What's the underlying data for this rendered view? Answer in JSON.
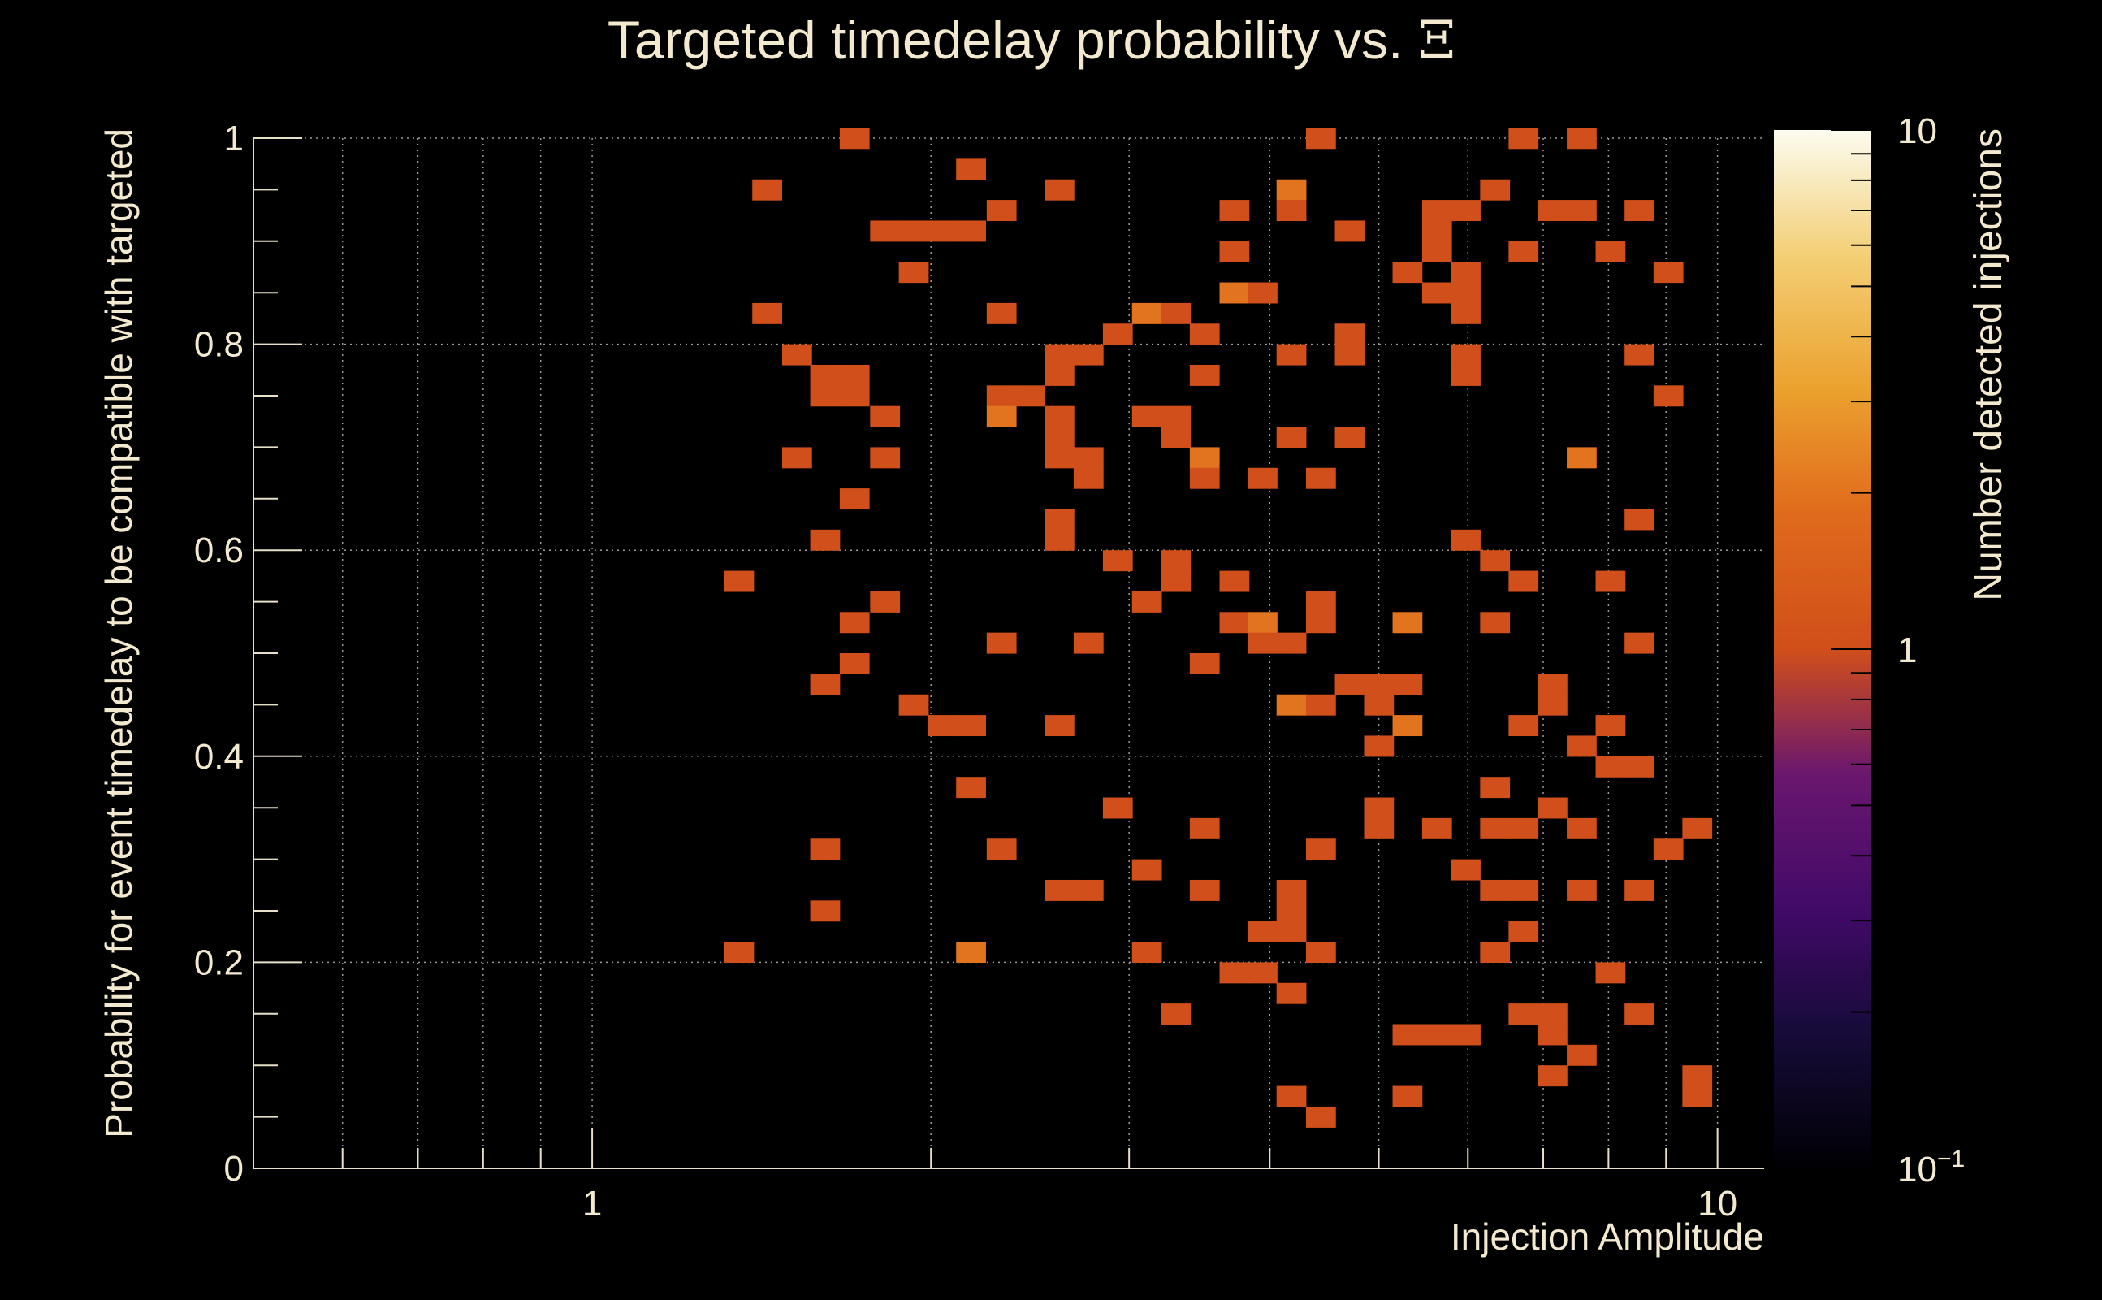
{
  "chart_data": {
    "type": "heatmap",
    "title": "Targeted timedelay probability vs. ",
    "title_symbol": "Ξ",
    "xlabel": "Injection Amplitude",
    "ylabel": "Probability for event timedelay to be compatible with targeted",
    "colorbar_label": "Number detected injections",
    "x_scale": "log",
    "xlim": [
      0.5,
      11
    ],
    "ylim": [
      0,
      1
    ],
    "x_ticks": [
      {
        "value": 1,
        "label": "1"
      },
      {
        "value": 10,
        "label": "10"
      }
    ],
    "y_ticks": [
      {
        "value": 0,
        "label": "0"
      },
      {
        "value": 0.2,
        "label": "0.2"
      },
      {
        "value": 0.4,
        "label": "0.4"
      },
      {
        "value": 0.6,
        "label": "0.6"
      },
      {
        "value": 0.8,
        "label": "0.8"
      },
      {
        "value": 1,
        "label": "1"
      }
    ],
    "colorbar": {
      "scale": "log",
      "range": [
        0.1,
        10
      ],
      "ticks": [
        {
          "value": 0.1,
          "base": "10",
          "exp": "−1"
        },
        {
          "value": 1,
          "label": "1"
        },
        {
          "value": 10,
          "label": "10"
        }
      ]
    },
    "grid": true,
    "bin_width_log10": 0.0261,
    "bin_height": 0.02,
    "cells": [
      [
        1.35,
        0.57,
        1
      ],
      [
        1.35,
        0.21,
        1
      ],
      [
        1.43,
        0.95,
        1
      ],
      [
        1.43,
        0.83,
        1
      ],
      [
        1.52,
        0.79,
        1
      ],
      [
        1.52,
        0.69,
        1
      ],
      [
        1.61,
        0.77,
        1
      ],
      [
        1.61,
        0.75,
        1
      ],
      [
        1.61,
        0.61,
        1
      ],
      [
        1.61,
        0.47,
        1
      ],
      [
        1.61,
        0.31,
        1
      ],
      [
        1.61,
        0.25,
        1
      ],
      [
        1.71,
        1.0,
        1
      ],
      [
        1.71,
        0.77,
        1
      ],
      [
        1.71,
        0.75,
        1
      ],
      [
        1.71,
        0.65,
        1
      ],
      [
        1.71,
        0.53,
        1
      ],
      [
        1.71,
        0.49,
        1
      ],
      [
        1.82,
        0.91,
        1
      ],
      [
        1.82,
        0.73,
        1
      ],
      [
        1.82,
        0.69,
        1
      ],
      [
        1.82,
        0.55,
        1
      ],
      [
        1.93,
        0.91,
        1
      ],
      [
        1.93,
        0.87,
        1
      ],
      [
        1.93,
        0.45,
        1
      ],
      [
        2.05,
        0.91,
        1
      ],
      [
        2.05,
        0.43,
        1
      ],
      [
        2.17,
        0.97,
        1
      ],
      [
        2.17,
        0.91,
        1
      ],
      [
        2.17,
        0.43,
        1
      ],
      [
        2.17,
        0.37,
        1
      ],
      [
        2.17,
        0.21,
        2
      ],
      [
        2.31,
        0.93,
        1
      ],
      [
        2.31,
        0.83,
        1
      ],
      [
        2.31,
        0.75,
        1
      ],
      [
        2.31,
        0.73,
        2
      ],
      [
        2.31,
        0.51,
        1
      ],
      [
        2.31,
        0.31,
        1
      ],
      [
        2.45,
        0.75,
        1
      ],
      [
        2.6,
        0.95,
        1
      ],
      [
        2.6,
        0.79,
        1
      ],
      [
        2.6,
        0.77,
        1
      ],
      [
        2.6,
        0.73,
        1
      ],
      [
        2.6,
        0.71,
        1
      ],
      [
        2.6,
        0.69,
        1
      ],
      [
        2.6,
        0.63,
        1
      ],
      [
        2.6,
        0.61,
        1
      ],
      [
        2.6,
        0.43,
        1
      ],
      [
        2.6,
        0.27,
        1
      ],
      [
        2.76,
        0.79,
        1
      ],
      [
        2.76,
        0.69,
        1
      ],
      [
        2.76,
        0.67,
        1
      ],
      [
        2.76,
        0.51,
        1
      ],
      [
        2.76,
        0.27,
        1
      ],
      [
        2.93,
        0.81,
        1
      ],
      [
        2.93,
        0.59,
        1
      ],
      [
        2.93,
        0.35,
        1
      ],
      [
        3.11,
        0.83,
        2
      ],
      [
        3.11,
        0.73,
        1
      ],
      [
        3.11,
        0.55,
        1
      ],
      [
        3.11,
        0.29,
        1
      ],
      [
        3.11,
        0.21,
        1
      ],
      [
        3.3,
        0.83,
        1
      ],
      [
        3.3,
        0.73,
        1
      ],
      [
        3.3,
        0.71,
        1
      ],
      [
        3.3,
        0.59,
        1
      ],
      [
        3.3,
        0.57,
        1
      ],
      [
        3.3,
        0.15,
        1
      ],
      [
        3.5,
        0.81,
        1
      ],
      [
        3.5,
        0.77,
        1
      ],
      [
        3.5,
        0.69,
        2
      ],
      [
        3.5,
        0.67,
        1
      ],
      [
        3.5,
        0.49,
        1
      ],
      [
        3.5,
        0.33,
        1
      ],
      [
        3.5,
        0.27,
        1
      ],
      [
        3.72,
        0.93,
        1
      ],
      [
        3.72,
        0.89,
        1
      ],
      [
        3.72,
        0.85,
        2
      ],
      [
        3.72,
        0.57,
        1
      ],
      [
        3.72,
        0.53,
        1
      ],
      [
        3.72,
        0.19,
        1
      ],
      [
        3.94,
        0.85,
        1
      ],
      [
        3.94,
        0.67,
        1
      ],
      [
        3.94,
        0.53,
        2
      ],
      [
        3.94,
        0.51,
        1
      ],
      [
        3.94,
        0.23,
        1
      ],
      [
        3.94,
        0.19,
        1
      ],
      [
        4.18,
        0.95,
        2
      ],
      [
        4.18,
        0.93,
        1
      ],
      [
        4.18,
        0.79,
        1
      ],
      [
        4.18,
        0.71,
        1
      ],
      [
        4.18,
        0.51,
        1
      ],
      [
        4.18,
        0.45,
        2
      ],
      [
        4.18,
        0.27,
        1
      ],
      [
        4.18,
        0.25,
        1
      ],
      [
        4.18,
        0.23,
        1
      ],
      [
        4.18,
        0.17,
        1
      ],
      [
        4.18,
        0.07,
        1
      ],
      [
        4.44,
        1.0,
        1
      ],
      [
        4.44,
        0.67,
        1
      ],
      [
        4.44,
        0.55,
        1
      ],
      [
        4.44,
        0.53,
        1
      ],
      [
        4.44,
        0.45,
        1
      ],
      [
        4.44,
        0.31,
        1
      ],
      [
        4.44,
        0.21,
        1
      ],
      [
        4.44,
        0.05,
        1
      ],
      [
        4.71,
        0.91,
        1
      ],
      [
        4.71,
        0.81,
        1
      ],
      [
        4.71,
        0.79,
        1
      ],
      [
        4.71,
        0.71,
        1
      ],
      [
        4.71,
        0.47,
        1
      ],
      [
        5.0,
        0.47,
        1
      ],
      [
        5.0,
        0.45,
        1
      ],
      [
        5.0,
        0.41,
        1
      ],
      [
        5.0,
        0.35,
        1
      ],
      [
        5.0,
        0.33,
        1
      ],
      [
        5.3,
        0.87,
        1
      ],
      [
        5.3,
        0.53,
        2
      ],
      [
        5.3,
        0.47,
        1
      ],
      [
        5.3,
        0.43,
        2
      ],
      [
        5.3,
        0.13,
        1
      ],
      [
        5.3,
        0.07,
        1
      ],
      [
        5.63,
        0.93,
        1
      ],
      [
        5.63,
        0.91,
        1
      ],
      [
        5.63,
        0.89,
        1
      ],
      [
        5.63,
        0.85,
        1
      ],
      [
        5.63,
        0.33,
        1
      ],
      [
        5.63,
        0.13,
        1
      ],
      [
        5.97,
        0.93,
        1
      ],
      [
        5.97,
        0.87,
        1
      ],
      [
        5.97,
        0.85,
        1
      ],
      [
        5.97,
        0.83,
        1
      ],
      [
        5.97,
        0.79,
        1
      ],
      [
        5.97,
        0.77,
        1
      ],
      [
        5.97,
        0.61,
        1
      ],
      [
        5.97,
        0.29,
        1
      ],
      [
        5.97,
        0.13,
        1
      ],
      [
        6.34,
        0.95,
        1
      ],
      [
        6.34,
        0.59,
        1
      ],
      [
        6.34,
        0.53,
        1
      ],
      [
        6.34,
        0.37,
        1
      ],
      [
        6.34,
        0.33,
        1
      ],
      [
        6.34,
        0.27,
        1
      ],
      [
        6.34,
        0.21,
        1
      ],
      [
        6.72,
        1.0,
        1
      ],
      [
        6.72,
        0.89,
        1
      ],
      [
        6.72,
        0.57,
        1
      ],
      [
        6.72,
        0.43,
        1
      ],
      [
        6.72,
        0.33,
        1
      ],
      [
        6.72,
        0.27,
        1
      ],
      [
        6.72,
        0.23,
        1
      ],
      [
        6.72,
        0.15,
        1
      ],
      [
        7.13,
        0.93,
        1
      ],
      [
        7.13,
        0.47,
        1
      ],
      [
        7.13,
        0.45,
        1
      ],
      [
        7.13,
        0.35,
        1
      ],
      [
        7.13,
        0.15,
        1
      ],
      [
        7.13,
        0.13,
        1
      ],
      [
        7.13,
        0.09,
        1
      ],
      [
        7.57,
        1.0,
        1
      ],
      [
        7.57,
        0.93,
        1
      ],
      [
        7.57,
        0.69,
        2
      ],
      [
        7.57,
        0.41,
        1
      ],
      [
        7.57,
        0.33,
        1
      ],
      [
        7.57,
        0.27,
        1
      ],
      [
        7.57,
        0.11,
        1
      ],
      [
        8.03,
        0.89,
        1
      ],
      [
        8.03,
        0.57,
        1
      ],
      [
        8.03,
        0.43,
        1
      ],
      [
        8.03,
        0.39,
        1
      ],
      [
        8.03,
        0.19,
        1
      ],
      [
        8.52,
        0.93,
        1
      ],
      [
        8.52,
        0.79,
        1
      ],
      [
        8.52,
        0.63,
        1
      ],
      [
        8.52,
        0.51,
        1
      ],
      [
        8.52,
        0.39,
        1
      ],
      [
        8.52,
        0.27,
        1
      ],
      [
        8.52,
        0.15,
        1
      ],
      [
        9.04,
        0.87,
        1
      ],
      [
        9.04,
        0.75,
        1
      ],
      [
        9.04,
        0.31,
        1
      ],
      [
        9.59,
        0.33,
        1
      ],
      [
        9.59,
        0.09,
        1
      ],
      [
        9.59,
        0.07,
        1
      ]
    ]
  }
}
